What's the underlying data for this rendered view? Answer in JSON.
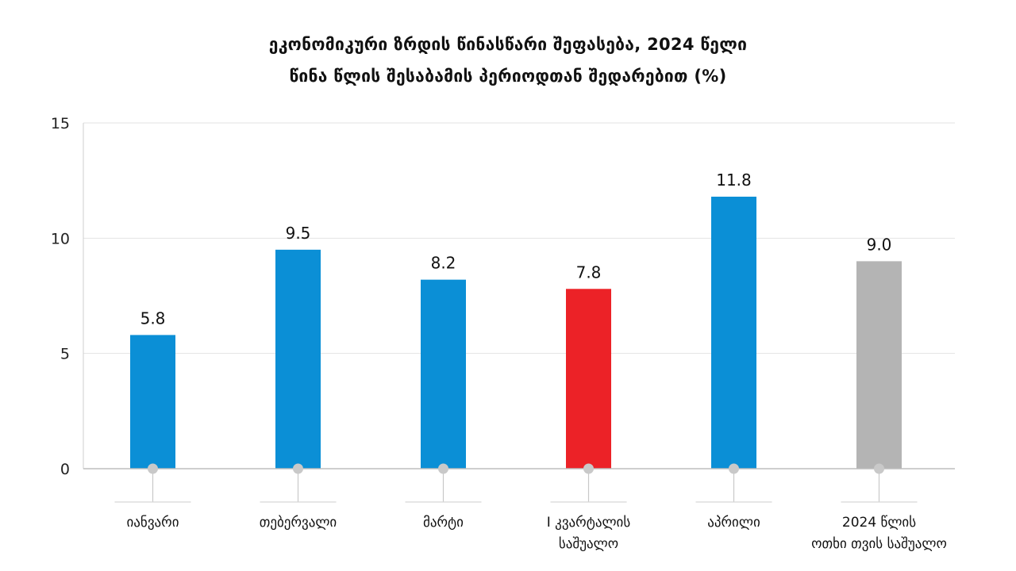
{
  "chart_data": {
    "type": "bar",
    "title": "ეკონომიკური ზრდის წინასწარი შეფასება, 2024 წელი",
    "subtitle": "წინა წლის შესაბამის პერიოდთან შედარებით (%)",
    "categories": [
      [
        "იანვარი"
      ],
      [
        "თებერვალი"
      ],
      [
        "მარტი"
      ],
      [
        "I კვარტალის",
        "საშუალო"
      ],
      [
        "აპრილი"
      ],
      [
        "2024 წლის",
        "ოთხი თვის საშუალო"
      ]
    ],
    "values": [
      5.8,
      9.5,
      8.2,
      7.8,
      11.8,
      9.0
    ],
    "value_labels": [
      "5.8",
      "9.5",
      "8.2",
      "7.8",
      "11.8",
      "9.0"
    ],
    "bar_colors": [
      "#0b8fd6",
      "#0b8fd6",
      "#0b8fd6",
      "#ec2227",
      "#0b8fd6",
      "#b4b4b4"
    ],
    "ylim": [
      0,
      15
    ],
    "yticks": [
      0,
      5,
      10,
      15
    ],
    "grid": true
  }
}
